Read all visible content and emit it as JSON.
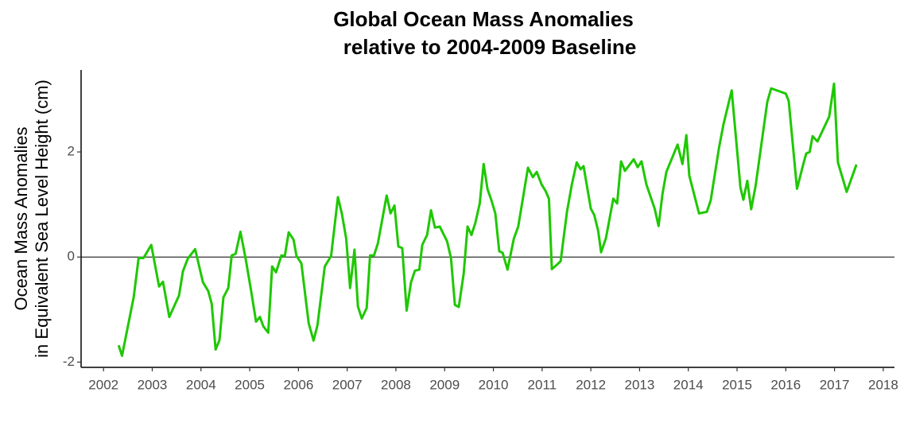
{
  "chart_data": {
    "type": "line",
    "title": [
      "Global Ocean Mass Anomalies",
      "relative to 2004-2009 Baseline"
    ],
    "y_label": [
      "Ocean Mass Anomalies",
      "in Equivalent Sea Level Height (cm)"
    ],
    "color": "#1ec800",
    "hline": 0,
    "xlim": [
      2001.54,
      2018.23
    ],
    "xticks": [
      2002,
      2003,
      2004,
      2005,
      2006,
      2007,
      2008,
      2009,
      2010,
      2011,
      2012,
      2013,
      2014,
      2015,
      2016,
      2017,
      2018
    ],
    "ylim": [
      -2.1,
      3.56
    ],
    "yticks": [
      -2,
      0,
      2
    ],
    "x": [
      2002.31,
      2002.38,
      2002.62,
      2002.72,
      2002.82,
      2002.98,
      2003.14,
      2003.22,
      2003.35,
      2003.55,
      2003.63,
      2003.73,
      2003.88,
      2004.04,
      2004.15,
      2004.22,
      2004.3,
      2004.38,
      2004.46,
      2004.56,
      2004.63,
      2004.71,
      2004.81,
      2004.92,
      2005.03,
      2005.13,
      2005.21,
      2005.28,
      2005.38,
      2005.46,
      2005.54,
      2005.65,
      2005.72,
      2005.8,
      2005.9,
      2005.96,
      2006.06,
      2006.21,
      2006.31,
      2006.39,
      2006.54,
      2006.67,
      2006.81,
      2006.89,
      2006.98,
      2007.06,
      2007.15,
      2007.22,
      2007.3,
      2007.4,
      2007.47,
      2007.55,
      2007.63,
      2007.81,
      2007.89,
      2007.97,
      2008.05,
      2008.13,
      2008.22,
      2008.31,
      2008.39,
      2008.48,
      2008.54,
      2008.64,
      2008.72,
      2008.8,
      2008.9,
      2009.05,
      2009.13,
      2009.21,
      2009.29,
      2009.39,
      2009.47,
      2009.55,
      2009.63,
      2009.72,
      2009.8,
      2009.88,
      2009.96,
      2010.04,
      2010.12,
      2010.19,
      2010.29,
      2010.42,
      2010.51,
      2010.71,
      2010.81,
      2010.89,
      2010.99,
      2011.07,
      2011.14,
      2011.2,
      2011.3,
      2011.38,
      2011.51,
      2011.61,
      2011.71,
      2011.79,
      2011.85,
      2012.0,
      2012.07,
      2012.15,
      2012.21,
      2012.31,
      2012.46,
      2012.54,
      2012.62,
      2012.7,
      2012.88,
      2012.96,
      2013.04,
      2013.14,
      2013.31,
      2013.39,
      2013.47,
      2013.55,
      2013.78,
      2013.88,
      2013.96,
      2014.02,
      2014.22,
      2014.38,
      2014.46,
      2014.63,
      2014.72,
      2014.89,
      2015.07,
      2015.13,
      2015.21,
      2015.29,
      2015.38,
      2015.62,
      2015.7,
      2016.0,
      2016.06,
      2016.23,
      2016.36,
      2016.42,
      2016.49,
      2016.55,
      2016.65,
      2016.89,
      2016.99,
      2017.07,
      2017.25,
      2017.45
    ],
    "values": [
      -1.68,
      -1.88,
      -0.76,
      -0.02,
      -0.02,
      0.23,
      -0.56,
      -0.47,
      -1.14,
      -0.73,
      -0.27,
      -0.03,
      0.15,
      -0.48,
      -0.65,
      -0.89,
      -1.76,
      -1.58,
      -0.77,
      -0.59,
      0.03,
      0.06,
      0.48,
      -0.05,
      -0.65,
      -1.23,
      -1.14,
      -1.32,
      -1.44,
      -0.18,
      -0.29,
      0.03,
      0.02,
      0.47,
      0.33,
      0.02,
      -0.12,
      -1.26,
      -1.59,
      -1.3,
      -0.18,
      0.02,
      1.14,
      0.83,
      0.35,
      -0.59,
      0.14,
      -0.94,
      -1.17,
      -0.97,
      0.03,
      0.03,
      0.26,
      1.17,
      0.83,
      0.98,
      0.2,
      0.17,
      -1.02,
      -0.48,
      -0.26,
      -0.24,
      0.23,
      0.42,
      0.89,
      0.56,
      0.58,
      0.3,
      -0.02,
      -0.91,
      -0.95,
      -0.32,
      0.58,
      0.42,
      0.65,
      1.02,
      1.77,
      1.29,
      1.08,
      0.83,
      0.11,
      0.08,
      -0.24,
      0.35,
      0.58,
      1.7,
      1.52,
      1.62,
      1.38,
      1.26,
      1.11,
      -0.23,
      -0.15,
      -0.08,
      0.86,
      1.38,
      1.8,
      1.67,
      1.73,
      0.92,
      0.8,
      0.5,
      0.09,
      0.36,
      1.11,
      1.02,
      1.82,
      1.64,
      1.86,
      1.71,
      1.82,
      1.38,
      0.92,
      0.59,
      1.2,
      1.62,
      2.14,
      1.77,
      2.32,
      1.55,
      0.83,
      0.86,
      1.08,
      2.08,
      2.52,
      3.17,
      1.32,
      1.09,
      1.45,
      0.91,
      1.35,
      2.95,
      3.21,
      3.11,
      2.97,
      1.3,
      1.77,
      1.97,
      2.0,
      2.3,
      2.2,
      2.67,
      3.3,
      1.8,
      1.24,
      1.76
    ]
  }
}
